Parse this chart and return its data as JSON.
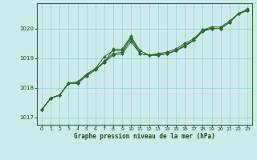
{
  "background_color": "#cceaea",
  "plot_bg_color": "#cceaea",
  "grid_color": "#99cccc",
  "line_color": "#2d6b2d",
  "marker_color": "#2d6b2d",
  "title": "Graphe pression niveau de la mer (hPa)",
  "title_color": "#1a4a1a",
  "xlim": [
    -0.5,
    23.5
  ],
  "ylim": [
    1016.75,
    1020.85
  ],
  "yticks": [
    1017,
    1018,
    1019,
    1020
  ],
  "xticks": [
    0,
    1,
    2,
    3,
    4,
    5,
    6,
    7,
    8,
    9,
    10,
    11,
    12,
    13,
    14,
    15,
    16,
    17,
    18,
    19,
    20,
    21,
    22,
    23
  ],
  "series": [
    [
      1017.25,
      1017.65,
      1017.75,
      1018.15,
      1018.15,
      1018.45,
      1018.65,
      1018.85,
      1019.3,
      1019.3,
      1019.75,
      1019.15,
      1019.1,
      1019.1,
      1019.15,
      1019.25,
      1019.45,
      1019.6,
      1019.95,
      1020.0,
      1020.0,
      1020.2,
      1020.5,
      1020.6
    ],
    [
      1017.25,
      1017.65,
      1017.75,
      1018.15,
      1018.15,
      1018.4,
      1018.6,
      1018.9,
      1019.15,
      1019.2,
      1019.65,
      1019.15,
      1019.1,
      1019.1,
      1019.15,
      1019.25,
      1019.4,
      1019.6,
      1019.9,
      1020.0,
      1020.0,
      1020.2,
      1020.5,
      1020.6
    ],
    [
      1017.25,
      1017.65,
      1017.75,
      1018.15,
      1018.15,
      1018.4,
      1018.6,
      1018.85,
      1019.1,
      1019.15,
      1019.55,
      1019.15,
      1019.1,
      1019.1,
      1019.15,
      1019.25,
      1019.4,
      1019.6,
      1019.9,
      1020.0,
      1020.0,
      1020.2,
      1020.5,
      1020.6
    ],
    [
      1017.25,
      1017.65,
      1017.75,
      1018.15,
      1018.2,
      1018.45,
      1018.65,
      1019.05,
      1019.25,
      1019.25,
      1019.7,
      1019.25,
      1019.1,
      1019.15,
      1019.2,
      1019.3,
      1019.5,
      1019.65,
      1019.95,
      1020.05,
      1020.05,
      1020.25,
      1020.5,
      1020.65
    ]
  ]
}
